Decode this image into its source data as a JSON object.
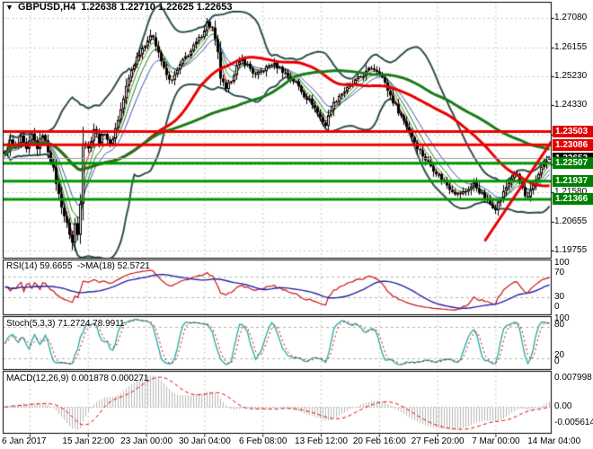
{
  "header": {
    "title": "GBPUSD,H4  1.22638 1.22710 1.22625 1.22653",
    "symbol": "GBPUSD",
    "timeframe": "H4",
    "dropdown_icon": "▼"
  },
  "price_axis": {
    "labels": [
      {
        "text": "1.27080",
        "price": 1.2708
      },
      {
        "text": "1.26155",
        "price": 1.26155
      },
      {
        "text": "1.25230",
        "price": 1.2523
      },
      {
        "text": "1.24330",
        "price": 1.2433
      },
      {
        "text": "1.23405",
        "price": 1.23405
      },
      {
        "text": "1.22480",
        "price": 1.2248
      },
      {
        "text": "1.21580",
        "price": 1.2158
      },
      {
        "text": "1.20655",
        "price": 1.20655
      },
      {
        "text": "1.19755",
        "price": 1.19755
      }
    ],
    "badges": [
      {
        "text": "1.23503",
        "price": 1.23503,
        "color": "#e00000",
        "role": "resistance"
      },
      {
        "text": "1.23086",
        "price": 1.23086,
        "color": "#e00000",
        "role": "resistance"
      },
      {
        "text": "1.22653",
        "price": 1.22653,
        "color": "#000000",
        "role": "last-price"
      },
      {
        "text": "1.22507",
        "price": 1.22507,
        "color": "#008000",
        "role": "support"
      },
      {
        "text": "1.21937",
        "price": 1.21937,
        "color": "#008000",
        "role": "support"
      },
      {
        "text": "1.21366",
        "price": 1.21366,
        "color": "#008000",
        "role": "support"
      }
    ]
  },
  "time_axis": {
    "labels": [
      "6 Jan 2017",
      "15 Jan 22:00",
      "23 Jan 00:00",
      "30 Jan 04:00",
      "6 Feb 08:00",
      "13 Feb 12:00",
      "20 Feb 16:00",
      "27 Feb 20:00",
      "7 Mar 00:00",
      "14 Mar 04:00"
    ]
  },
  "panels": {
    "rsi": {
      "label": "RSI(14) 59.6655  ->MA(18) 52.5721",
      "axis_labels": [
        "100",
        "70",
        "30",
        "0"
      ],
      "levels": [
        70,
        30
      ]
    },
    "stoch": {
      "label": "Stoch(5,3,3) 71.2724 78.9911",
      "axis_labels": [
        "100",
        "80",
        "20",
        "0"
      ],
      "levels": [
        80,
        20
      ]
    },
    "macd": {
      "label": "MACD(12,26,9) 0.001878 0.000271",
      "axis_labels": [
        "0.007998",
        "0.00",
        "-0.005614"
      ]
    }
  },
  "chart_data": {
    "type": "candlestick",
    "symbol": "GBPUSD",
    "timeframe": "H4",
    "num_bars": 203,
    "last_candle": {
      "open": 1.22638,
      "high": 1.2271,
      "low": 1.22625,
      "close": 1.22653
    },
    "extremes": {
      "high_bar": 75,
      "high_price": 1.2708,
      "low_bar": 25,
      "low_price": 1.1976
    },
    "price_waypoints": [
      [
        0,
        1.2275
      ],
      [
        2,
        1.232
      ],
      [
        4,
        1.2295
      ],
      [
        6,
        1.233
      ],
      [
        8,
        1.229
      ],
      [
        10,
        1.234
      ],
      [
        12,
        1.23
      ],
      [
        14,
        1.2345
      ],
      [
        16,
        1.229
      ],
      [
        18,
        1.223
      ],
      [
        20,
        1.215
      ],
      [
        22,
        1.2085
      ],
      [
        24,
        1.203
      ],
      [
        25,
        1.2
      ],
      [
        26,
        1.206
      ],
      [
        27,
        1.2025
      ],
      [
        28,
        1.213
      ],
      [
        29,
        1.232
      ],
      [
        31,
        1.2295
      ],
      [
        33,
        1.236
      ],
      [
        35,
        1.232
      ],
      [
        37,
        1.235
      ],
      [
        39,
        1.2305
      ],
      [
        41,
        1.236
      ],
      [
        43,
        1.242
      ],
      [
        45,
        1.249
      ],
      [
        47,
        1.2545
      ],
      [
        49,
        1.2585
      ],
      [
        51,
        1.2615
      ],
      [
        53,
        1.264
      ],
      [
        55,
        1.2652
      ],
      [
        57,
        1.26
      ],
      [
        59,
        1.2545
      ],
      [
        61,
        1.251
      ],
      [
        63,
        1.2525
      ],
      [
        65,
        1.256
      ],
      [
        67,
        1.2585
      ],
      [
        69,
        1.2605
      ],
      [
        71,
        1.263
      ],
      [
        73,
        1.2655
      ],
      [
        75,
        1.2693
      ],
      [
        77,
        1.2675
      ],
      [
        79,
        1.2595
      ],
      [
        80,
        1.252
      ],
      [
        82,
        1.2478
      ],
      [
        84,
        1.2515
      ],
      [
        86,
        1.2555
      ],
      [
        88,
        1.2575
      ],
      [
        90,
        1.256
      ],
      [
        93,
        1.2525
      ],
      [
        96,
        1.2545
      ],
      [
        99,
        1.2565
      ],
      [
        102,
        1.255
      ],
      [
        105,
        1.2525
      ],
      [
        108,
        1.2505
      ],
      [
        111,
        1.2465
      ],
      [
        114,
        1.244
      ],
      [
        117,
        1.2395
      ],
      [
        119,
        1.237
      ],
      [
        121,
        1.2425
      ],
      [
        124,
        1.2465
      ],
      [
        127,
        1.2485
      ],
      [
        130,
        1.251
      ],
      [
        133,
        1.253
      ],
      [
        136,
        1.2552
      ],
      [
        139,
        1.254
      ],
      [
        141,
        1.25
      ],
      [
        144,
        1.2445
      ],
      [
        147,
        1.24
      ],
      [
        150,
        1.2352
      ],
      [
        153,
        1.2302
      ],
      [
        156,
        1.2262
      ],
      [
        159,
        1.2232
      ],
      [
        162,
        1.2202
      ],
      [
        165,
        1.2172
      ],
      [
        168,
        1.2152
      ],
      [
        171,
        1.2162
      ],
      [
        174,
        1.2186
      ],
      [
        176,
        1.2162
      ],
      [
        178,
        1.2142
      ],
      [
        180,
        1.2122
      ],
      [
        182,
        1.211
      ],
      [
        184,
        1.2142
      ],
      [
        186,
        1.2176
      ],
      [
        188,
        1.2206
      ],
      [
        190,
        1.2216
      ],
      [
        192,
        1.2172
      ],
      [
        193,
        1.2142
      ],
      [
        194,
        1.2136
      ],
      [
        196,
        1.2182
      ],
      [
        198,
        1.2222
      ],
      [
        200,
        1.2248
      ],
      [
        202,
        1.2265
      ]
    ],
    "horizontal_lines": [
      {
        "price": 1.23503,
        "color": "#ee0000",
        "role": "resistance"
      },
      {
        "price": 1.23086,
        "color": "#ee0000",
        "role": "resistance"
      },
      {
        "price": 1.22507,
        "color": "#009600",
        "role": "support"
      },
      {
        "price": 1.21937,
        "color": "#009600",
        "role": "support"
      },
      {
        "price": 1.21366,
        "color": "#009600",
        "role": "support"
      }
    ],
    "trendline": {
      "from_bar": 178,
      "from_price": 1.2005,
      "to_bar": 206,
      "to_price": 1.236,
      "color": "#e80000"
    },
    "last_price_line": {
      "price": 1.22653,
      "color": "#a0a0a0"
    },
    "indicators": {
      "bollinger": {
        "period": 20,
        "deviation": 2,
        "color": "#2F4F4F"
      },
      "ma_thin_red": {
        "period": 3,
        "color": "#dd0000"
      },
      "ma_thin_green_fast": {
        "period": 5,
        "color": "#2e9b2e"
      },
      "ma_thin_green_slow": {
        "period": 8,
        "color": "#227722"
      },
      "ma_thin_blue": {
        "period": 13,
        "color": "#3c50b4"
      },
      "ma_thick_red": {
        "period": 45,
        "color": "#e80000"
      },
      "ma_thick_green": {
        "period": 80,
        "color": "#1a7a1a"
      },
      "rsi": {
        "period": 14,
        "value": 59.6655,
        "ma_period": 18,
        "ma_value": 52.5721,
        "line_color": "#cc1111",
        "ma_color": "#2222a8",
        "levels": [
          70,
          30
        ]
      },
      "stochastic": {
        "k": 5,
        "d": 3,
        "slowing": 3,
        "value_k": 71.2724,
        "value_d": 78.9911,
        "k_color": "#1faaa2",
        "d_color": "#e00000",
        "levels": [
          80,
          20
        ]
      },
      "macd": {
        "fast": 12,
        "slow": 26,
        "signal": 9,
        "value": 0.001878,
        "signal_value": 0.000271,
        "axis_max": 0.007998,
        "axis_min": -0.005614,
        "hist_color": "#b8b8b8",
        "signal_color": "#e00000"
      }
    },
    "style": {
      "background": "#ffffff",
      "grid": "#c8c8c8",
      "border": "#000000",
      "candle": "#000000",
      "badge_text": "#ffffff"
    }
  }
}
